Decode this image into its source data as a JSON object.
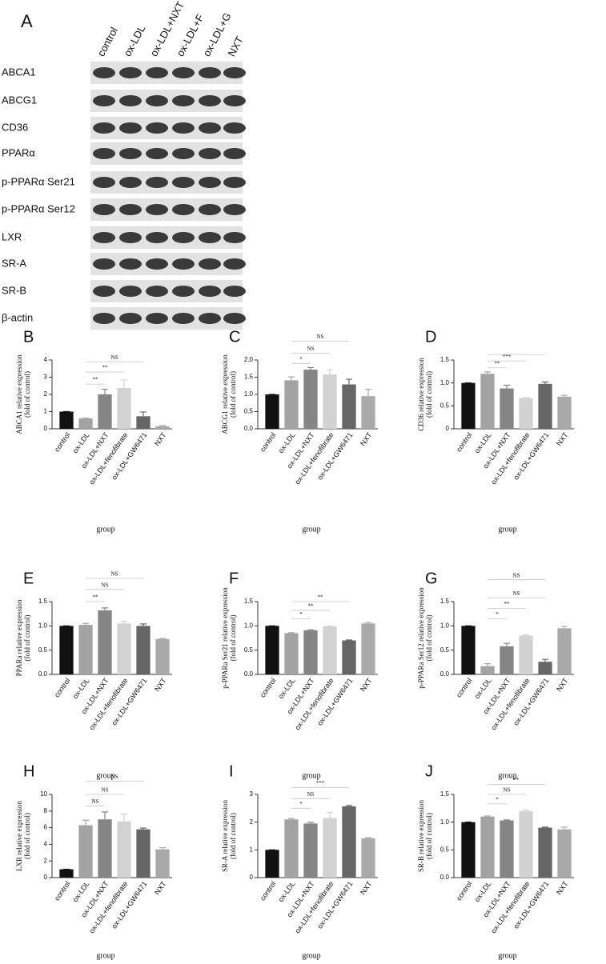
{
  "panel_a": {
    "label": "A",
    "lanes": [
      "control",
      "ox-LDL",
      "ox-LDL+NXT",
      "ox-LDL+F",
      "ox-LDL+G",
      "NXT"
    ],
    "rows": [
      "ABCA1",
      "ABCG1",
      "CD36",
      "PPARα",
      "p-PPARα Ser21",
      "p-PPARα Ser12",
      "LXR",
      "SR-A",
      "SR-B",
      "β-actin"
    ]
  },
  "chart_data": [
    {
      "type": "bar",
      "panel": "B",
      "y_label": [
        "ABCA1 relative expression",
        "(fold of control)"
      ],
      "x_label": "group",
      "categories": [
        "control",
        "ox-LDL",
        "ox-LDL+NXT",
        "ox-LDL+fenofibrate",
        "ox-LDL+GW6471",
        "NXT"
      ],
      "values": [
        1.0,
        0.6,
        2.0,
        2.37,
        0.73,
        0.15
      ],
      "errors": [
        0,
        0.02,
        0.3,
        0.47,
        0.25,
        0.03
      ],
      "colors": [
        "#111111",
        "#a3a3a3",
        "#858585",
        "#d2d2d2",
        "#666666",
        "#a9a9a9"
      ],
      "ylim": [
        0,
        4
      ],
      "yticks": [
        0,
        1,
        2,
        3,
        4
      ],
      "brackets": [
        {
          "from": 1,
          "to": 2,
          "value": 2.6,
          "label": "**"
        },
        {
          "from": 1,
          "to": 3,
          "value": 3.3,
          "label": "**"
        },
        {
          "from": 1,
          "to": 4,
          "value": 3.9,
          "label": "NS"
        }
      ]
    },
    {
      "type": "bar",
      "panel": "C",
      "y_label": [
        "ABCG1 relative expression",
        "(fold of control)"
      ],
      "x_label": "group",
      "categories": [
        "control",
        "ox-LDL",
        "ox-LDL+NXT",
        "ox-LDL+fenofibrate",
        "ox-LDL+GW6471",
        "NXT"
      ],
      "values": [
        1.0,
        1.41,
        1.72,
        1.58,
        1.29,
        0.95
      ],
      "errors": [
        0,
        0.1,
        0.06,
        0.14,
        0.15,
        0.2
      ],
      "colors": [
        "#111111",
        "#a3a3a3",
        "#858585",
        "#d2d2d2",
        "#666666",
        "#a9a9a9"
      ],
      "ylim": [
        0,
        2
      ],
      "yticks": [
        {
          "value": 0,
          "label": "0.0"
        },
        0.5,
        {
          "value": 1,
          "label": "1.0"
        },
        1.5,
        {
          "value": 2,
          "label": "2.0"
        }
      ],
      "brackets": [
        {
          "from": 1,
          "to": 2,
          "value": 1.9,
          "label": "*"
        },
        {
          "from": 1,
          "to": 3,
          "value": 2.2,
          "label": "NS"
        },
        {
          "from": 1,
          "to": 4,
          "value": 2.55,
          "label": "NS"
        }
      ]
    },
    {
      "type": "bar",
      "panel": "D",
      "y_label": [
        "CD36 relative expression",
        "(fold of control)"
      ],
      "x_label": "group",
      "categories": [
        "control",
        "ox-LDL",
        "ox-LDL+NXT",
        "ox-LDL+fenofibrate",
        "ox-LDL+GW6471",
        "NXT"
      ],
      "values": [
        1.0,
        1.2,
        0.88,
        0.67,
        0.98,
        0.7
      ],
      "errors": [
        0,
        0.04,
        0.07,
        0.01,
        0.04,
        0.03
      ],
      "colors": [
        "#111111",
        "#a3a3a3",
        "#858585",
        "#d2d2d2",
        "#666666",
        "#a9a9a9"
      ],
      "ylim": [
        0,
        1.5
      ],
      "yticks": [
        0,
        0.5,
        {
          "value": 1,
          "label": "1.0"
        },
        1.5
      ],
      "brackets": [
        {
          "from": 1,
          "to": 2,
          "value": 1.33,
          "label": "**"
        },
        {
          "from": 1,
          "to": 3,
          "value": 1.48,
          "label": "***"
        },
        {
          "from": 1,
          "to": 4,
          "value": 1.62
        }
      ]
    },
    {
      "type": "bar",
      "panel": "E",
      "y_label": [
        "PPARa relative expression",
        "(fold of control)"
      ],
      "x_label": "group",
      "categories": [
        "control",
        "ox-LDL",
        "ox-LDL+NXT",
        "ox-LDL+fenofibrate",
        "ox-LDL+GW6471",
        "NXT"
      ],
      "values": [
        1.0,
        1.02,
        1.32,
        1.05,
        1.0,
        0.73
      ],
      "errors": [
        0,
        0.03,
        0.05,
        0.04,
        0.04,
        0.01
      ],
      "colors": [
        "#111111",
        "#a3a3a3",
        "#858585",
        "#d2d2d2",
        "#666666",
        "#a9a9a9"
      ],
      "ylim": [
        0,
        1.5
      ],
      "yticks": [
        {
          "value": 0,
          "label": "0.0"
        },
        0.5,
        {
          "value": 1,
          "label": "1.0"
        },
        1.5
      ],
      "brackets": [
        {
          "from": 1,
          "to": 2,
          "value": 1.5,
          "label": "**"
        },
        {
          "from": 1,
          "to": 3,
          "value": 1.75,
          "label": "NS"
        },
        {
          "from": 1,
          "to": 4,
          "value": 1.98,
          "label": "NS"
        }
      ]
    },
    {
      "type": "bar",
      "panel": "F",
      "y_label": [
        "p-PPARa Ser21 relative expression",
        "(fold of control)"
      ],
      "x_label": "group",
      "categories": [
        "control",
        "ox-LDL",
        "ox-LDL+NXT",
        "ox-LDL+fenofibrate",
        "ox-LDL+GW6471",
        "NXT"
      ],
      "values": [
        1.0,
        0.85,
        0.91,
        0.99,
        0.7,
        1.05
      ],
      "errors": [
        0,
        0.01,
        0.01,
        0.01,
        0.01,
        0.02
      ],
      "colors": [
        "#111111",
        "#a3a3a3",
        "#858585",
        "#d2d2d2",
        "#666666",
        "#a9a9a9"
      ],
      "ylim": [
        0,
        1.5
      ],
      "yticks": [
        {
          "value": 0,
          "label": "0.0"
        },
        0.5,
        {
          "value": 1,
          "label": "1.0"
        },
        1.5
      ],
      "brackets": [
        {
          "from": 1,
          "to": 2,
          "value": 1.15,
          "label": "*"
        },
        {
          "from": 1,
          "to": 3,
          "value": 1.32,
          "label": "**"
        },
        {
          "from": 1,
          "to": 4,
          "value": 1.5,
          "label": "**"
        }
      ]
    },
    {
      "type": "bar",
      "panel": "G",
      "y_label": [
        "p-PPARa Ser12 relative expression",
        "(fold of control)"
      ],
      "x_label": "group",
      "categories": [
        "control",
        "ox-LDL",
        "ox-LDL+NXT",
        "ox-LDL+fenofibrate",
        "ox-LDL+GW6471",
        "NXT"
      ],
      "values": [
        1.0,
        0.17,
        0.58,
        0.8,
        0.26,
        0.95
      ],
      "errors": [
        0,
        0.05,
        0.06,
        0.01,
        0.05,
        0.04
      ],
      "colors": [
        "#111111",
        "#a3a3a3",
        "#858585",
        "#d2d2d2",
        "#666666",
        "#a9a9a9"
      ],
      "ylim": [
        0,
        1.5
      ],
      "yticks": [
        {
          "value": 0,
          "label": "0.0"
        },
        0.5,
        {
          "value": 1,
          "label": "1.0"
        },
        1.5
      ],
      "brackets": [
        {
          "from": 1,
          "to": 2,
          "value": 1.15,
          "label": "*"
        },
        {
          "from": 1,
          "to": 3,
          "value": 1.36,
          "label": "**"
        },
        {
          "from": 1,
          "to": 4,
          "value": 1.58,
          "label": "NS"
        },
        {
          "from": 1,
          "to": 4,
          "value": 1.95,
          "label": "NS"
        }
      ]
    },
    {
      "type": "bar",
      "panel": "H",
      "y_label": [
        "LXR relative expression",
        "(fold of control)"
      ],
      "x_label": "group",
      "categories": [
        "control",
        "ox-LDL",
        "ox-LDL+NXT",
        "ox-LDL+fenofibrate",
        "ox-LDL+GW6471",
        "NXT"
      ],
      "values": [
        1.0,
        6.3,
        7.0,
        6.75,
        5.8,
        3.4
      ],
      "errors": [
        0,
        0.6,
        0.9,
        0.9,
        0.15,
        0.2
      ],
      "colors": [
        "#111111",
        "#a3a3a3",
        "#858585",
        "#d2d2d2",
        "#666666",
        "#a9a9a9"
      ],
      "ylim": [
        0,
        10
      ],
      "yticks": [
        0,
        2,
        4,
        6,
        8,
        10
      ],
      "brackets": [
        {
          "from": 1,
          "to": 2,
          "value": 8.6,
          "label": "NS"
        },
        {
          "from": 1,
          "to": 3,
          "value": 10.0,
          "label": "NS"
        },
        {
          "from": 1,
          "to": 4,
          "value": 11.6,
          "label": "NS"
        }
      ]
    },
    {
      "type": "bar",
      "panel": "I",
      "y_label": [
        "SR-A relative expression",
        "(fold of control)"
      ],
      "x_label": "group",
      "categories": [
        "control",
        "ox-LDL",
        "ox-LDL+NXT",
        "ox-LDL+fenofibrate",
        "ox-LDL+GW6471",
        "NXT"
      ],
      "values": [
        1.0,
        2.1,
        1.95,
        2.15,
        2.57,
        1.42
      ],
      "errors": [
        0,
        0.03,
        0.04,
        0.2,
        0.03,
        0.02
      ],
      "colors": [
        "#111111",
        "#a3a3a3",
        "#858585",
        "#d2d2d2",
        "#666666",
        "#a9a9a9"
      ],
      "ylim": [
        0,
        3
      ],
      "yticks": [
        0,
        1,
        2,
        3
      ],
      "brackets": [
        {
          "from": 1,
          "to": 2,
          "value": 2.5,
          "label": "*"
        },
        {
          "from": 1,
          "to": 3,
          "value": 2.85,
          "label": "NS"
        },
        {
          "from": 1,
          "to": 4,
          "value": 3.25,
          "label": "***"
        }
      ]
    },
    {
      "type": "bar",
      "panel": "J",
      "y_label": [
        "SR-B relative expression",
        "(fold of control)"
      ],
      "x_label": "group",
      "categories": [
        "control",
        "ox-LDL",
        "ox-LDL+NXT",
        "ox-LDL+fenofibrate",
        "ox-LDL+GW6471",
        "NXT"
      ],
      "values": [
        1.0,
        1.1,
        1.03,
        1.2,
        0.9,
        0.87
      ],
      "errors": [
        0,
        0.01,
        0.01,
        0.02,
        0.01,
        0.04
      ],
      "colors": [
        "#111111",
        "#a3a3a3",
        "#858585",
        "#d2d2d2",
        "#666666",
        "#a9a9a9"
      ],
      "ylim": [
        0,
        1.5
      ],
      "yticks": [
        {
          "value": 0,
          "label": "0.0"
        },
        0.5,
        {
          "value": 1,
          "label": "1.0"
        },
        1.5
      ],
      "brackets": [
        {
          "from": 1,
          "to": 2,
          "value": 1.33,
          "label": "*"
        },
        {
          "from": 1,
          "to": 3,
          "value": 1.5,
          "label": "NS"
        },
        {
          "from": 1,
          "to": 4,
          "value": 1.68,
          "label": "**"
        }
      ]
    }
  ]
}
